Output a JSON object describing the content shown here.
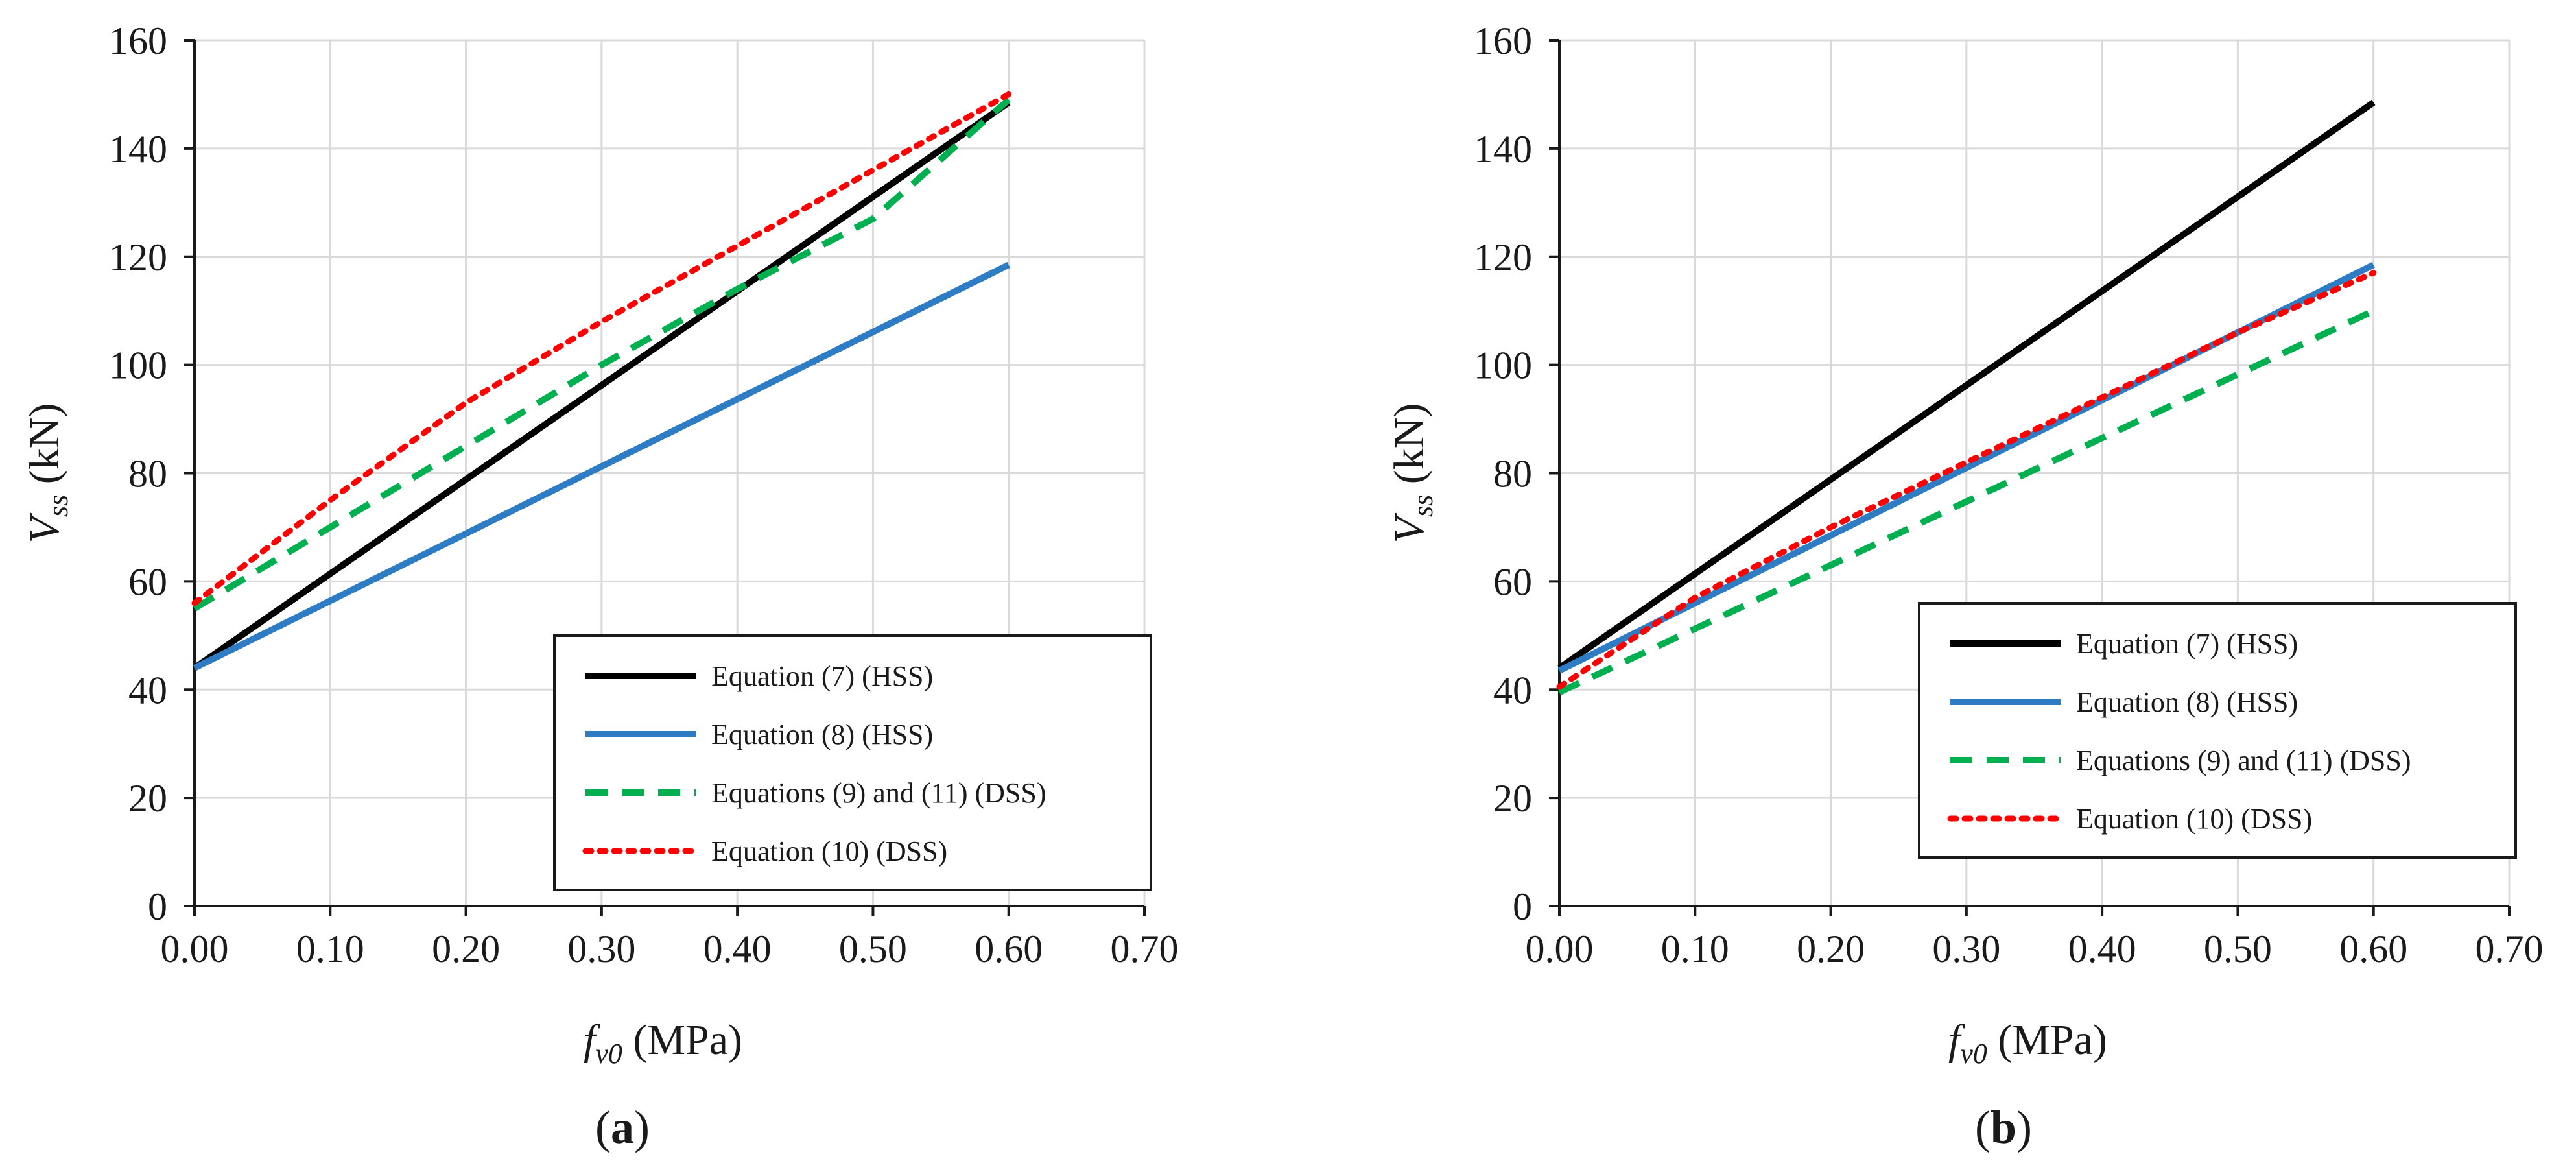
{
  "chart_data": [
    {
      "type": "line",
      "panel_label": "(a)",
      "xlabel": "fv0 (MPa)",
      "xlabel_main": "f",
      "xlabel_sub": "v0",
      "xlabel_unit": " (MPa)",
      "ylabel": "Vss (kN)",
      "ylabel_main": "V",
      "ylabel_sub": "ss",
      "ylabel_unit": " (kN)",
      "xlim": [
        0,
        0.7
      ],
      "ylim": [
        0,
        160
      ],
      "xticks": [
        "0.00",
        "0.10",
        "0.20",
        "0.30",
        "0.40",
        "0.50",
        "0.60",
        "0.70"
      ],
      "yticks": [
        "0",
        "20",
        "40",
        "60",
        "80",
        "100",
        "120",
        "140",
        "160"
      ],
      "grid": true,
      "legend_position": "bottom-right",
      "series": [
        {
          "name": "Equation (7) (HSS)",
          "color": "#000000",
          "style": "solid",
          "x": [
            0,
            0.6
          ],
          "y": [
            44,
            148.5
          ]
        },
        {
          "name": "Equation (8) (HSS)",
          "color": "#2e7dc4",
          "style": "solid",
          "x": [
            0,
            0.6
          ],
          "y": [
            44,
            118.5
          ]
        },
        {
          "name": "Equations (9) and (11) (DSS)",
          "color": "#00b050",
          "style": "dashed",
          "x": [
            0,
            0.1,
            0.2,
            0.3,
            0.4,
            0.5,
            0.6
          ],
          "y": [
            55,
            70,
            85,
            100,
            114,
            127,
            149
          ]
        },
        {
          "name": "Equation (10) (DSS)",
          "color": "#ff0000",
          "style": "dotted",
          "x": [
            0,
            0.1,
            0.2,
            0.3,
            0.4,
            0.5,
            0.6
          ],
          "y": [
            56,
            75,
            93,
            108,
            122,
            136,
            150
          ]
        }
      ]
    },
    {
      "type": "line",
      "panel_label": "(b)",
      "xlabel": "fv0 (MPa)",
      "xlabel_main": "f",
      "xlabel_sub": "v0",
      "xlabel_unit": " (MPa)",
      "ylabel": "Vss (kN)",
      "ylabel_main": "V",
      "ylabel_sub": "ss",
      "ylabel_unit": " (kN)",
      "xlim": [
        0,
        0.7
      ],
      "ylim": [
        0,
        160
      ],
      "xticks": [
        "0.00",
        "0.10",
        "0.20",
        "0.30",
        "0.40",
        "0.50",
        "0.60",
        "0.70"
      ],
      "yticks": [
        "0",
        "20",
        "40",
        "60",
        "80",
        "100",
        "120",
        "140",
        "160"
      ],
      "grid": true,
      "legend_position": "bottom-right",
      "series": [
        {
          "name": "Equation (7) (HSS)",
          "color": "#000000",
          "style": "solid",
          "x": [
            0,
            0.6
          ],
          "y": [
            44,
            148.5
          ]
        },
        {
          "name": "Equation (8) (HSS)",
          "color": "#2e7dc4",
          "style": "solid",
          "x": [
            0,
            0.6
          ],
          "y": [
            43.5,
            118.5
          ]
        },
        {
          "name": "Equations (9) and (11) (DSS)",
          "color": "#00b050",
          "style": "dashed",
          "x": [
            0,
            0.6
          ],
          "y": [
            39.5,
            110
          ]
        },
        {
          "name": "Equation (10) (DSS)",
          "color": "#ff0000",
          "style": "dotted",
          "x": [
            0,
            0.1,
            0.2,
            0.3,
            0.4,
            0.5,
            0.6
          ],
          "y": [
            40.5,
            57,
            70,
            82,
            94,
            106,
            117
          ]
        }
      ]
    }
  ]
}
